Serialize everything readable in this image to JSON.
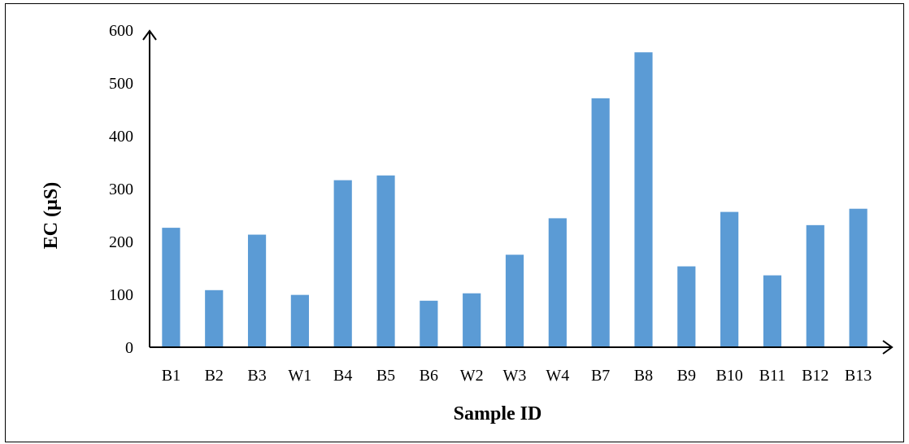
{
  "chart_data": {
    "type": "bar",
    "title": "",
    "xlabel": "Sample ID",
    "ylabel": "EC (µS)",
    "categories": [
      "B1",
      "B2",
      "B3",
      "W1",
      "B4",
      "B5",
      "B6",
      "W2",
      "W3",
      "W4",
      "B7",
      "B8",
      "B9",
      "B10",
      "B11",
      "B12",
      "B13"
    ],
    "values": [
      226,
      108,
      213,
      99,
      316,
      325,
      88,
      102,
      175,
      244,
      471,
      558,
      153,
      256,
      136,
      231,
      262
    ],
    "ylim": [
      0,
      600
    ],
    "yticks": [
      0,
      100,
      200,
      300,
      400,
      500,
      600
    ],
    "grid": false,
    "legend": "none",
    "bar_color": "#5b9bd5"
  }
}
